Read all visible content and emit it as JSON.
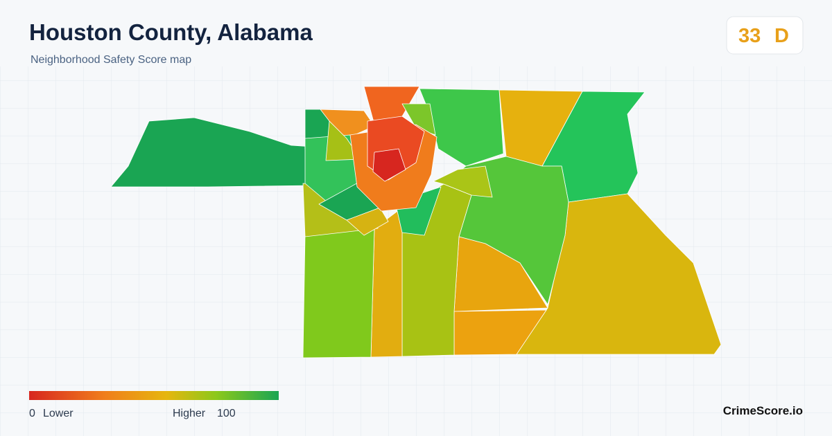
{
  "header": {
    "title": "Houston County, Alabama",
    "subtitle": "Neighborhood Safety Score map"
  },
  "score": {
    "value": 33,
    "grade": "D"
  },
  "legend": {
    "min": 0,
    "min_label": "Lower",
    "max_label": "Higher",
    "max": 100
  },
  "footer": {
    "brand": "CrimeScore.io"
  }
}
